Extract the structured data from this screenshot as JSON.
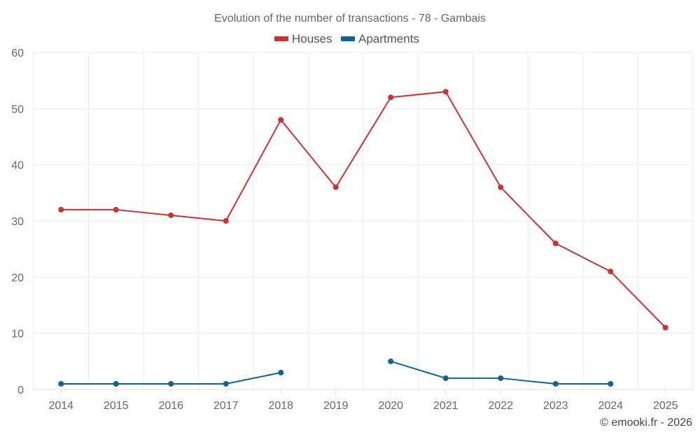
{
  "chart_data": {
    "type": "line",
    "title": "Evolution of the number of transactions - 78 - Gambais",
    "xlabel": "",
    "ylabel": "",
    "categories": [
      "2014",
      "2015",
      "2016",
      "2017",
      "2018",
      "2019",
      "2020",
      "2021",
      "2022",
      "2023",
      "2024",
      "2025"
    ],
    "ylim": [
      0,
      60
    ],
    "yticks": [
      0,
      10,
      20,
      30,
      40,
      50,
      60
    ],
    "grid": true,
    "legend_position": "top-center",
    "series": [
      {
        "name": "Houses",
        "color": "#d32f2f",
        "values": [
          32,
          32,
          31,
          30,
          48,
          36,
          52,
          53,
          36,
          26,
          21,
          11
        ]
      },
      {
        "name": "Apartments",
        "color": "#0a6399",
        "values": [
          1,
          1,
          1,
          1,
          3,
          null,
          5,
          2,
          2,
          1,
          1,
          null
        ]
      }
    ]
  },
  "credit": "© emooki.fr - 2026"
}
